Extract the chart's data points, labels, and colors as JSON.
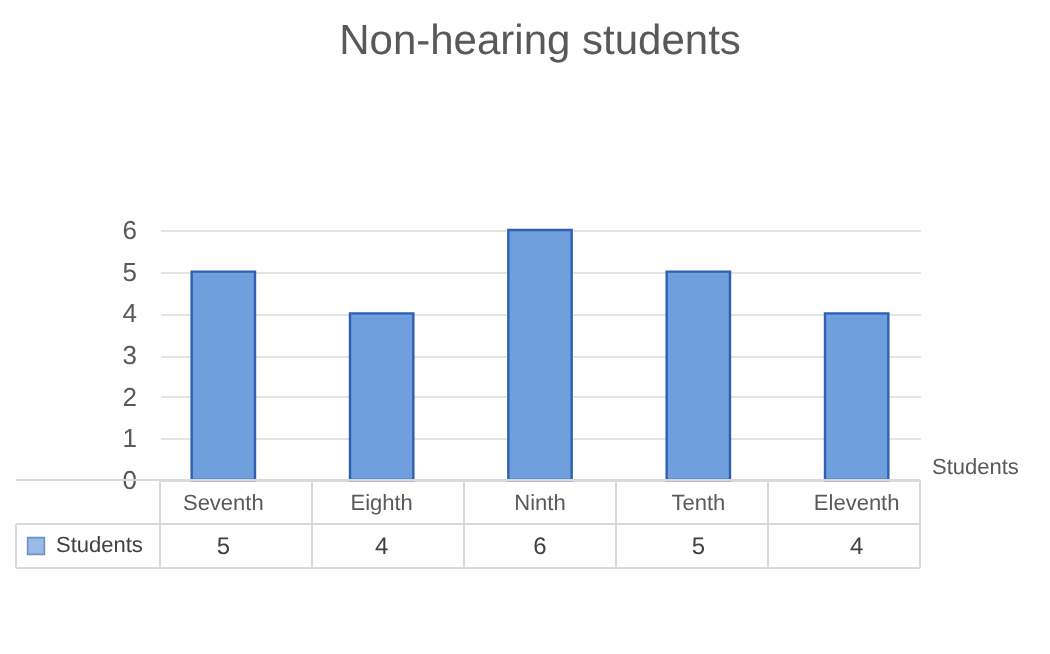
{
  "chart_data": {
    "type": "bar",
    "title": "Non-hearing students",
    "categories": [
      "Seventh",
      "Eighth",
      "Ninth",
      "Tenth",
      "Eleventh"
    ],
    "series": [
      {
        "name": "Students",
        "color": "#6f9fdc",
        "values": [
          5,
          4,
          6,
          5,
          4
        ]
      }
    ],
    "ylim": [
      0,
      6
    ],
    "yticks": [
      0,
      1,
      2,
      3,
      4,
      5,
      6
    ],
    "grid": "y",
    "data_labels": true
  }
}
